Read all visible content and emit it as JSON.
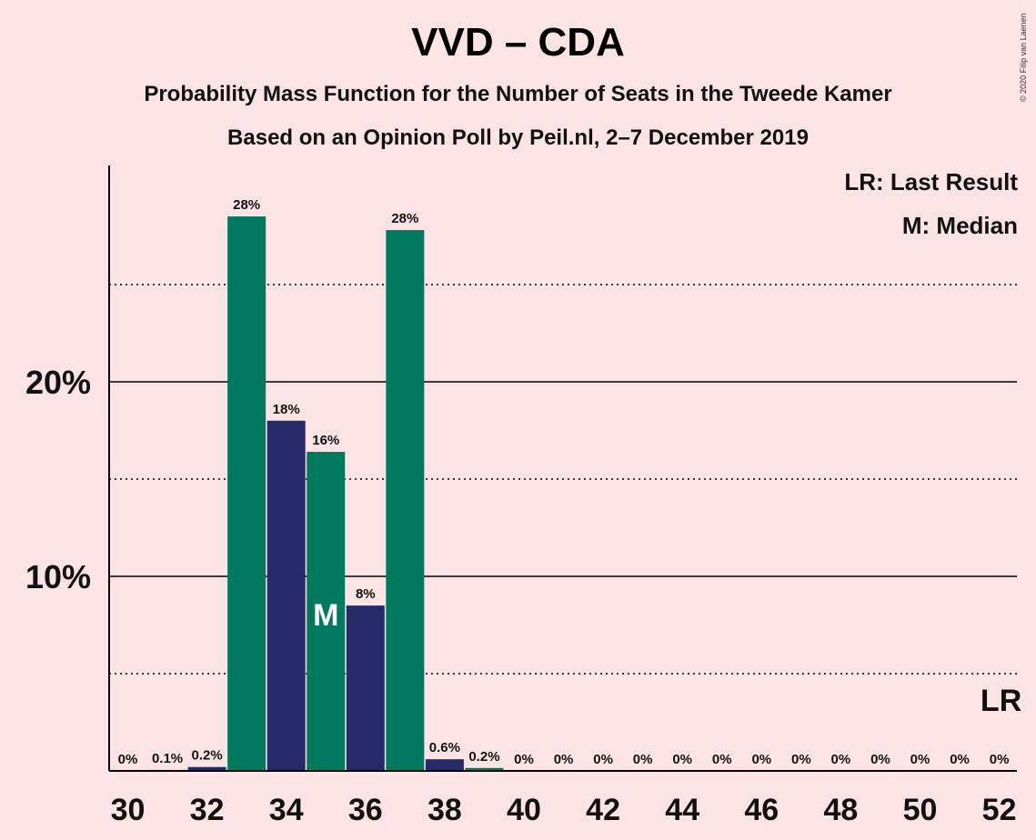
{
  "title": "VVD – CDA",
  "subtitle": "Probability Mass Function for the Number of Seats in the Tweede Kamer",
  "subsubtitle": "Based on an Opinion Poll by Peil.nl, 2–7 December 2019",
  "copyright": "© 2020 Filip van Laenen",
  "legend": {
    "lr": "LR: Last Result",
    "median": "M: Median"
  },
  "colors": {
    "background": "#fce4e4",
    "green": "#007a5e",
    "navy": "#262a68",
    "axis": "#000000"
  },
  "chart_data": {
    "type": "bar",
    "title": "VVD – CDA",
    "xlabel": "",
    "ylabel": "",
    "ylim": [
      0,
      31
    ],
    "yticks": [
      {
        "value": 10,
        "label": "10%"
      },
      {
        "value": 20,
        "label": "20%"
      }
    ],
    "minor_gridlines": [
      5,
      15,
      25
    ],
    "xtick_labels": [
      "30",
      "32",
      "34",
      "36",
      "38",
      "40",
      "42",
      "44",
      "46",
      "48",
      "50",
      "52"
    ],
    "xticks": [
      30,
      32,
      34,
      36,
      38,
      40,
      42,
      44,
      46,
      48,
      50,
      52
    ],
    "x": [
      30,
      31,
      32,
      33,
      34,
      35,
      36,
      37,
      38,
      39,
      40,
      41,
      42,
      43,
      44,
      45,
      46,
      47,
      48,
      49,
      50,
      51,
      52
    ],
    "values": [
      0,
      0.05,
      0.2,
      28.5,
      18,
      16.4,
      8.5,
      27.8,
      0.6,
      0.15,
      0,
      0,
      0,
      0,
      0,
      0,
      0,
      0,
      0,
      0,
      0,
      0,
      0
    ],
    "labels": [
      "0%",
      "0.1%",
      "0.2%",
      "28%",
      "18%",
      "16%",
      "8%",
      "28%",
      "0.6%",
      "0.2%",
      "0%",
      "0%",
      "0%",
      "0%",
      "0%",
      "0%",
      "0%",
      "0%",
      "0%",
      "0%",
      "0%",
      "0%",
      "0%"
    ],
    "bar_colors": [
      "green",
      "navy",
      "navy",
      "green",
      "navy",
      "green",
      "navy",
      "green",
      "navy",
      "green",
      "green",
      "green",
      "green",
      "green",
      "green",
      "green",
      "green",
      "green",
      "green",
      "green",
      "green",
      "green",
      "green"
    ],
    "median_seat": 35,
    "median_label": "M",
    "last_result_seat": 52,
    "last_result_label": "LR"
  }
}
